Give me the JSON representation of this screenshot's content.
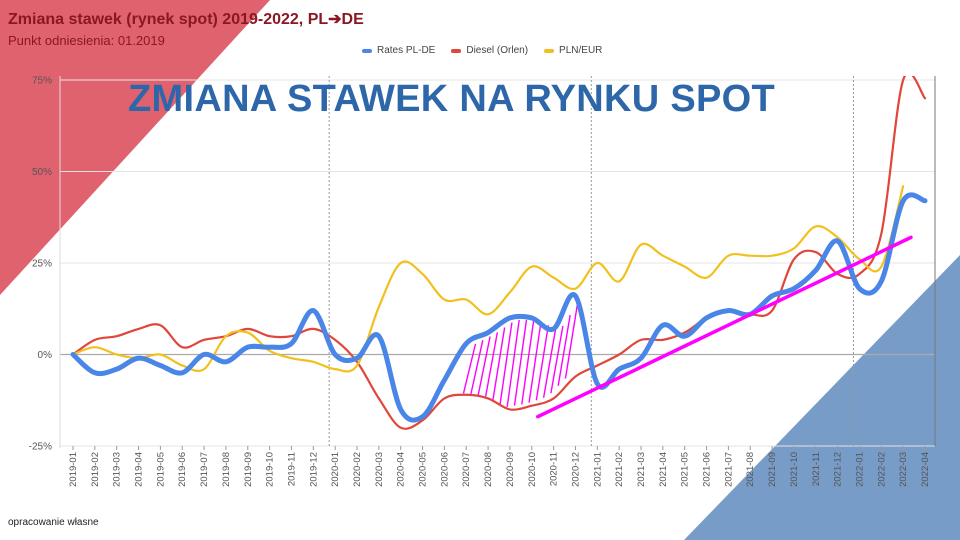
{
  "header": {
    "title": "Zmiana stawek (rynek spot) 2019-2022, PL➔DE",
    "subtitle": "Punkt odniesienia: 01.2019",
    "banner": "ZMIANA STAWEK NA RYNKU SPOT"
  },
  "footnote": "opracowanie własne",
  "colors": {
    "rates": "#4a86e8",
    "diesel": "#e0463a",
    "plneur": "#f2c01e",
    "trend": "#ff00ff",
    "red_corner": "#d9404f",
    "blue_corner": "#3f72b0"
  },
  "chart_data": {
    "type": "line",
    "title": "",
    "xlabel": "",
    "ylabel": "",
    "ylim": [
      -25,
      75
    ],
    "y_ticks": [
      "-25%",
      "0%",
      "25%",
      "50%",
      "75%"
    ],
    "y_tick_values": [
      -25,
      0,
      25,
      50,
      75
    ],
    "legend_position": "top-center",
    "grid": true,
    "categories": [
      "2019-01",
      "2019-02",
      "2019-03",
      "2019-04",
      "2019-05",
      "2019-06",
      "2019-07",
      "2019-08",
      "2019-09",
      "2019-10",
      "2019-11",
      "2019-12",
      "2020-01",
      "2020-02",
      "2020-03",
      "2020-04",
      "2020-05",
      "2020-06",
      "2020-07",
      "2020-08",
      "2020-09",
      "2020-10",
      "2020-11",
      "2020-12",
      "2021-01",
      "2021-02",
      "2021-03",
      "2021-04",
      "2021-05",
      "2021-06",
      "2021-07",
      "2021-08",
      "2021-09",
      "2021-10",
      "2021-11",
      "2021-12",
      "2022-01",
      "2022-02",
      "2022-03",
      "2022-04"
    ],
    "series": [
      {
        "name": "Rates PL-DE",
        "color_key": "rates",
        "values": [
          0,
          -5,
          -4,
          -1,
          -3,
          -5,
          0,
          -2,
          2,
          2,
          3,
          12,
          0,
          -1,
          5,
          -15,
          -17,
          -7,
          3,
          6,
          10,
          10,
          7,
          16,
          -8,
          -4,
          -1,
          8,
          5,
          10,
          12,
          11,
          16,
          18,
          23,
          31,
          18,
          20,
          42,
          42
        ]
      },
      {
        "name": "Diesel (Orlen)",
        "color_key": "diesel",
        "values": [
          0,
          4,
          5,
          7,
          8,
          2,
          4,
          5,
          7,
          5,
          5,
          7,
          4,
          -2,
          -12,
          -20,
          -18,
          -12,
          -11,
          -12,
          -15,
          -14,
          -12,
          -6,
          -3,
          0,
          4,
          4,
          6,
          10,
          12,
          11,
          12,
          26,
          28,
          22,
          22,
          33,
          75,
          70
        ]
      },
      {
        "name": "PLN/EUR",
        "color_key": "plneur",
        "values": [
          0,
          2,
          0,
          -1,
          0,
          -3,
          -4,
          5,
          6,
          1,
          -1,
          -2,
          -4,
          -3,
          13,
          25,
          22,
          15,
          15,
          11,
          17,
          24,
          21,
          18,
          25,
          20,
          30,
          27,
          24,
          21,
          27,
          27,
          27,
          29,
          35,
          32,
          26,
          24,
          46,
          null
        ]
      }
    ],
    "trend_line": {
      "from": {
        "x": "2020-10",
        "y": -17
      },
      "to": {
        "x": "2022-04",
        "y": 32
      }
    }
  }
}
